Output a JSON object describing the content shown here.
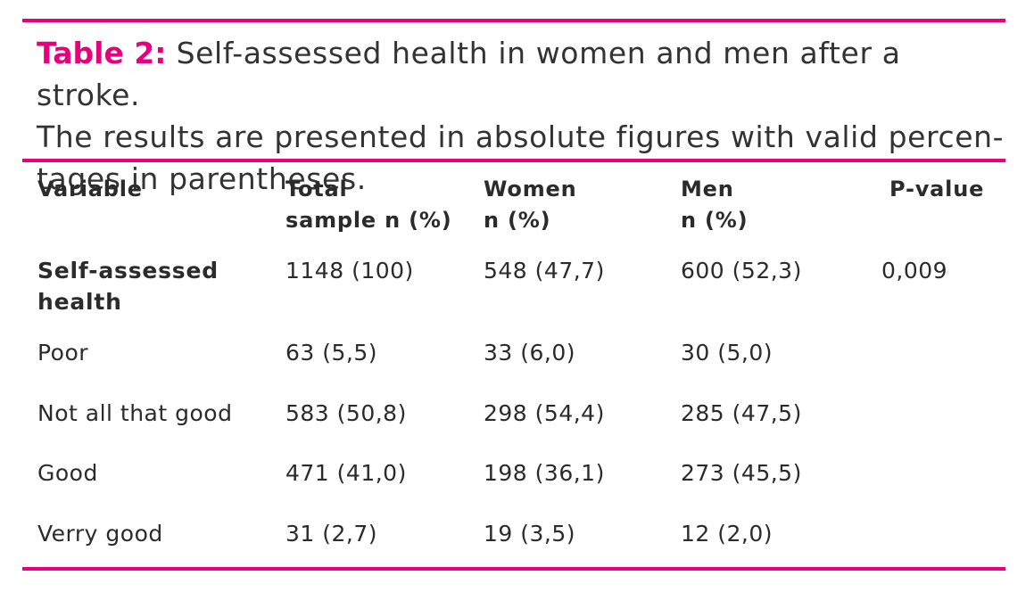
{
  "caption": {
    "label": "Table 2:",
    "line1": "Self-assessed health in women and men after a stroke.",
    "line2": "The results are presented in absolute figures with valid percen-",
    "line3": "tages in parentheses."
  },
  "columns": {
    "variable": "Variable",
    "total_line1": "Total",
    "total_line2": "sample n (%)",
    "women_line1": "Women",
    "women_line2": "n (%)",
    "men_line1": "Men",
    "men_line2": "n (%)",
    "pvalue": "P-value"
  },
  "summary_row": {
    "variable_line1": "Self-assessed",
    "variable_line2": "health",
    "total": "1148 (100)",
    "women": "548 (47,7)",
    "men": "600 (52,3)",
    "pvalue": "0,009"
  },
  "rows": [
    {
      "variable": "Poor",
      "total": "63 (5,5)",
      "women": "33 (6,0)",
      "men": "30 (5,0)"
    },
    {
      "variable": "Not all that good",
      "total": "583 (50,8)",
      "women": "298 (54,4)",
      "men": "285 (47,5)"
    },
    {
      "variable": "Good",
      "total": "471 (41,0)",
      "women": "198 (36,1)",
      "men": "273 (45,5)"
    },
    {
      "variable": "Verry good",
      "total": "31 (2,7)",
      "women": "19 (3,5)",
      "men": "12 (2,0)"
    }
  ],
  "colors": {
    "accent": "#e6007e",
    "text": "#2b2b2b"
  }
}
